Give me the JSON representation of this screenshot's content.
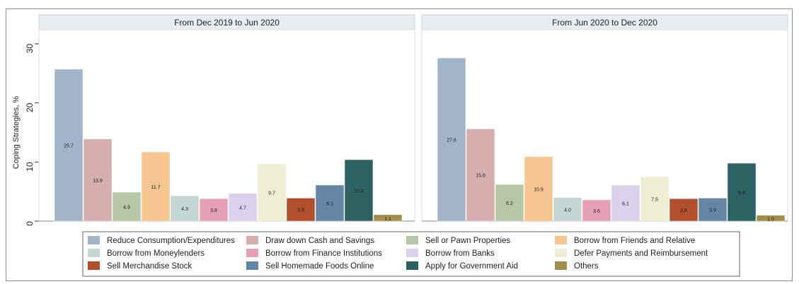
{
  "chart_data": {
    "type": "bar",
    "ylabel": "Coping Strategies, %",
    "ylim": [
      0,
      30
    ],
    "yticks": [
      0,
      10,
      20,
      30
    ],
    "grid": false,
    "legend_position": "bottom",
    "series": [
      {
        "name": "Reduce Consumption/Expenditures",
        "color": "#a2b4c7"
      },
      {
        "name": "Draw down Cash and Savings",
        "color": "#d7aeae"
      },
      {
        "name": "Sell or Pawn Properties",
        "color": "#b5c7a6"
      },
      {
        "name": "Borrow from Friends and Relative",
        "color": "#f5c58f"
      },
      {
        "name": "Borrow from Moneylenders",
        "color": "#c5d7d4"
      },
      {
        "name": "Borrow from Finance Institutions",
        "color": "#e5a0b4"
      },
      {
        "name": "Borrow from Banks",
        "color": "#d8d2ec"
      },
      {
        "name": "Defer Payments and Reimbursement",
        "color": "#eeeed2"
      },
      {
        "name": "Sell Merchandise Stock",
        "color": "#b2502d"
      },
      {
        "name": "Sell Homemade Foods Online",
        "color": "#6485a3"
      },
      {
        "name": "Apply for Government Aid",
        "color": "#2d6262"
      },
      {
        "name": "Others",
        "color": "#a38f4b"
      }
    ],
    "panels": [
      {
        "title": "From Dec 2019 to Jun 2020",
        "values": [
          25.7,
          13.9,
          4.9,
          11.7,
          4.3,
          3.8,
          4.7,
          9.7,
          3.9,
          6.1,
          10.4,
          1.1
        ]
      },
      {
        "title": "From Jun 2020 to Dec 2020",
        "values": [
          27.6,
          15.6,
          6.2,
          10.9,
          4.0,
          3.6,
          6.1,
          7.5,
          3.8,
          3.9,
          9.8,
          1.0
        ]
      }
    ]
  }
}
